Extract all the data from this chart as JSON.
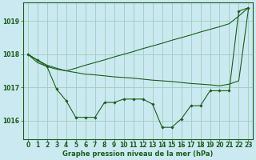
{
  "title": "Graphe pression niveau de la mer (hPa)",
  "xlabel": "Graphe pression niveau de la mer (hPa)",
  "background_color": "#cbe9f0",
  "plot_bg_color": "#cbe9f0",
  "grid_color": "#9dcfbb",
  "line_color": "#1a5e1a",
  "hours": [
    0,
    1,
    2,
    3,
    4,
    5,
    6,
    7,
    8,
    9,
    10,
    11,
    12,
    13,
    14,
    15,
    16,
    17,
    18,
    19,
    20,
    21,
    22,
    23
  ],
  "series1": [
    1018.0,
    1017.83,
    1017.67,
    1017.58,
    1017.5,
    1017.58,
    1017.67,
    1017.75,
    1017.83,
    1017.92,
    1018.0,
    1018.08,
    1018.17,
    1018.25,
    1018.33,
    1018.42,
    1018.5,
    1018.58,
    1018.67,
    1018.75,
    1018.83,
    1018.92,
    1019.15,
    1019.4
  ],
  "series2": [
    1018.0,
    1017.75,
    1017.63,
    1017.55,
    1017.5,
    1017.45,
    1017.4,
    1017.38,
    1017.35,
    1017.32,
    1017.3,
    1017.28,
    1017.25,
    1017.22,
    1017.2,
    1017.18,
    1017.15,
    1017.12,
    1017.1,
    1017.08,
    1017.05,
    1017.1,
    1017.2,
    1019.35
  ],
  "series3": [
    1018.0,
    1017.82,
    1017.63,
    1016.95,
    1016.6,
    1016.1,
    1016.1,
    1016.1,
    1016.55,
    1016.55,
    1016.65,
    1016.65,
    1016.65,
    1016.5,
    1015.8,
    1015.8,
    1016.05,
    1016.45,
    1016.45,
    1016.9,
    1016.9,
    1016.9,
    1019.3,
    1019.4
  ],
  "ylim_min": 1015.45,
  "ylim_max": 1019.55,
  "yticks": [
    1016,
    1017,
    1018,
    1019
  ],
  "marker": "D",
  "marker_size": 1.8,
  "line_width": 0.8,
  "tick_fontsize": 5.5,
  "label_fontsize": 6.0,
  "label_fontweight": "bold"
}
